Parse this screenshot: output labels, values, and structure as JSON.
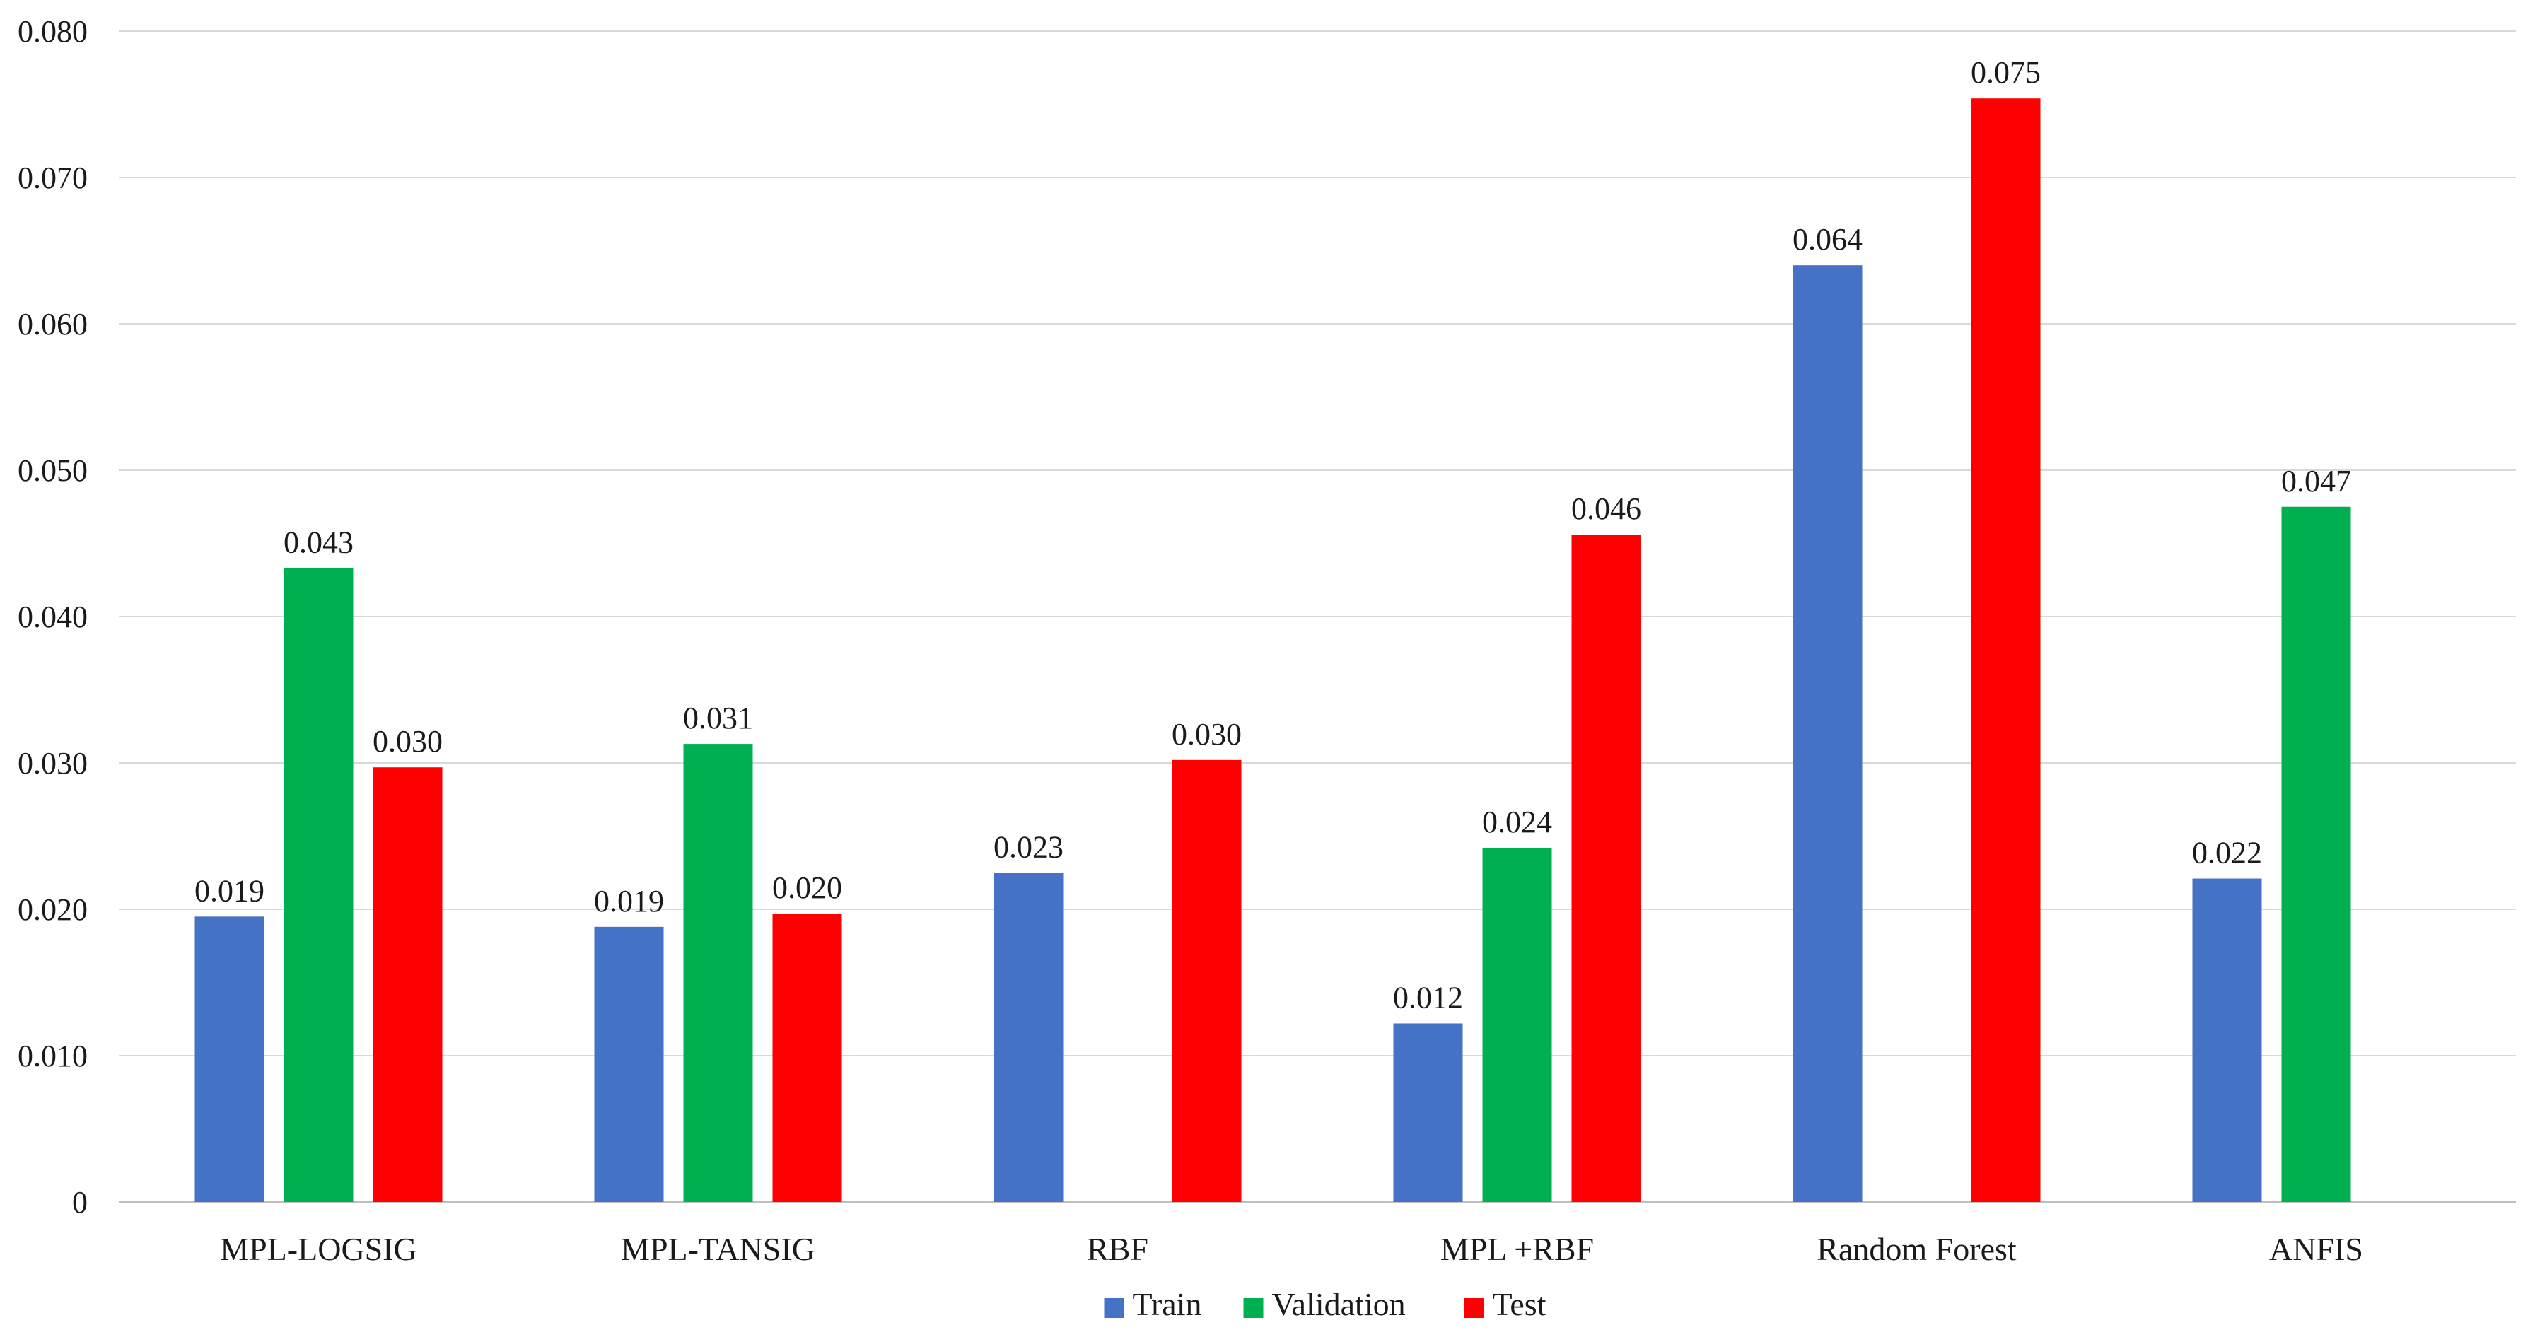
{
  "chart_data": {
    "type": "bar",
    "title": "",
    "xlabel": "",
    "ylabel": "",
    "ylim": [
      0,
      0.08
    ],
    "y_ticks": [
      "0",
      "0.010",
      "0.020",
      "0.030",
      "0.040",
      "0.050",
      "0.060",
      "0.070",
      "0.080"
    ],
    "y_tick_values": [
      0,
      0.01,
      0.02,
      0.03,
      0.04,
      0.05,
      0.06,
      0.07,
      0.08
    ],
    "grid": true,
    "legend_position": "bottom-center",
    "categories": [
      "MPL-LOGSIG",
      "MPL-TANSIG",
      "RBF",
      "MPL +RBF",
      "Random Forest",
      "ANFIS"
    ],
    "series": [
      {
        "name": "Train",
        "color": "#4472C4",
        "values": [
          0.0195,
          0.0188,
          0.0225,
          0.0122,
          0.064,
          0.0221
        ],
        "labels": [
          "0.019",
          "0.019",
          "0.023",
          "0.012",
          "0.064",
          "0.022"
        ]
      },
      {
        "name": "Validation",
        "color": "#00B050",
        "values": [
          0.0433,
          0.0313,
          null,
          0.0242,
          null,
          0.0475
        ],
        "labels": [
          "0.043",
          "0.031",
          null,
          "0.024",
          null,
          "0.047"
        ]
      },
      {
        "name": "Test",
        "color": "#FF0000",
        "values": [
          0.0297,
          0.0197,
          0.0302,
          0.0456,
          0.0754,
          null
        ],
        "labels": [
          "0.030",
          "0.020",
          "0.030",
          "0.046",
          "0.075",
          null
        ]
      }
    ]
  }
}
